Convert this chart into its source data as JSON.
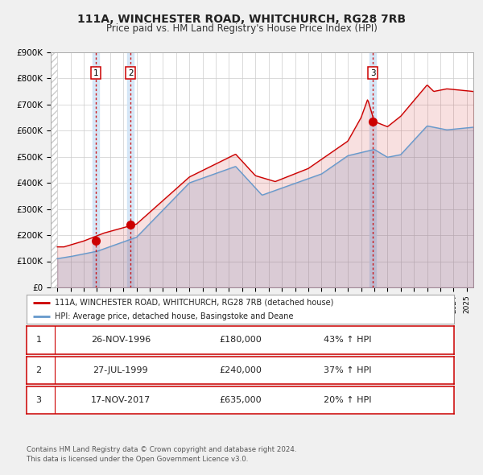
{
  "title": "111A, WINCHESTER ROAD, WHITCHURCH, RG28 7RB",
  "subtitle": "Price paid vs. HM Land Registry's House Price Index (HPI)",
  "ylim": [
    0,
    900000
  ],
  "ytick_labels": [
    "£0",
    "£100K",
    "£200K",
    "£300K",
    "£400K",
    "£500K",
    "£600K",
    "£700K",
    "£800K",
    "£900K"
  ],
  "ytick_values": [
    0,
    100000,
    200000,
    300000,
    400000,
    500000,
    600000,
    700000,
    800000,
    900000
  ],
  "xlim_start": 1993.5,
  "xlim_end": 2025.5,
  "sale_color": "#cc0000",
  "hpi_color": "#6699cc",
  "sale_dot_color": "#cc0000",
  "vline_color": "#cc0000",
  "shade_color": "#d0e4f7",
  "transaction_labels": [
    "1",
    "2",
    "3"
  ],
  "transaction_dates_num": [
    1996.9,
    1999.55,
    2017.88
  ],
  "transaction_prices": [
    180000,
    240000,
    635000
  ],
  "legend_label_sale": "111A, WINCHESTER ROAD, WHITCHURCH, RG28 7RB (detached house)",
  "legend_label_hpi": "HPI: Average price, detached house, Basingstoke and Deane",
  "table_entries": [
    {
      "num": "1",
      "date": "26-NOV-1996",
      "price": "£180,000",
      "pct": "43% ↑ HPI"
    },
    {
      "num": "2",
      "date": "27-JUL-1999",
      "price": "£240,000",
      "pct": "37% ↑ HPI"
    },
    {
      "num": "3",
      "date": "17-NOV-2017",
      "price": "£635,000",
      "pct": "20% ↑ HPI"
    }
  ],
  "footnote": "Contains HM Land Registry data © Crown copyright and database right 2024.\nThis data is licensed under the Open Government Licence v3.0.",
  "bg_color": "#f0f0f0",
  "plot_bg_color": "#ffffff",
  "grid_color": "#cccccc",
  "hatch_color": "#cccccc"
}
